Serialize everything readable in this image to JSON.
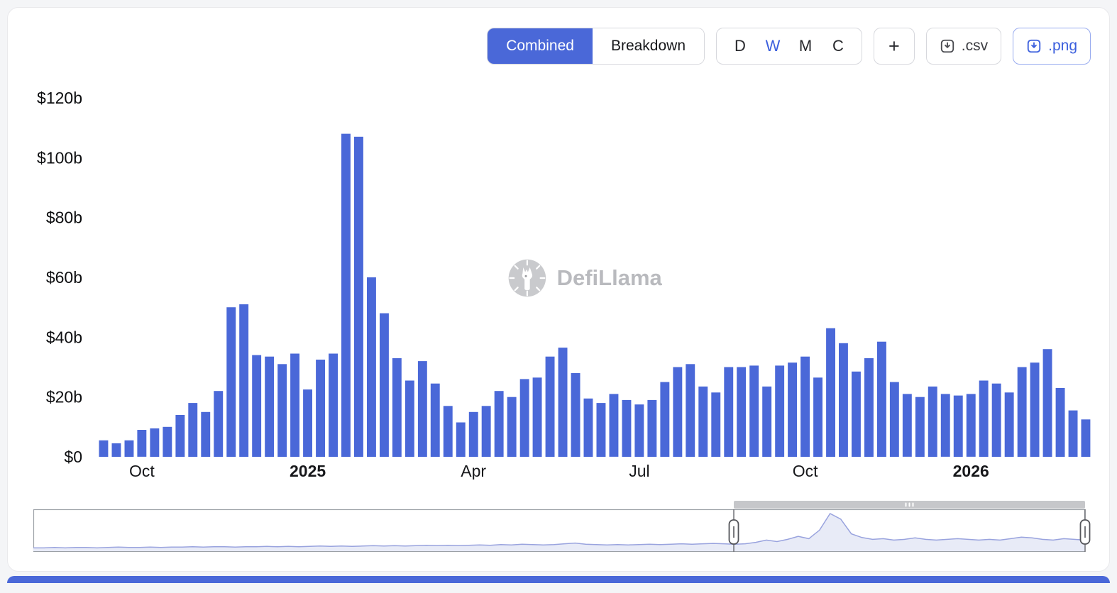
{
  "toolbar": {
    "view_modes": [
      {
        "label": "Combined",
        "active": true
      },
      {
        "label": "Breakdown",
        "active": false
      }
    ],
    "intervals": [
      {
        "label": "D",
        "active": false
      },
      {
        "label": "W",
        "active": true
      },
      {
        "label": "M",
        "active": false
      },
      {
        "label": "C",
        "active": false
      }
    ],
    "add_button": "+",
    "export_csv": ".csv",
    "export_png": ".png"
  },
  "watermark": "DefiLlama",
  "chart_data": {
    "type": "bar",
    "title": "",
    "xlabel": "",
    "ylabel": "",
    "unit": "billions USD (weekly)",
    "bar_color": "#4a68d8",
    "ylim": [
      0,
      120
    ],
    "yticks": [
      {
        "label": "$0",
        "value": 0
      },
      {
        "label": "$20b",
        "value": 20
      },
      {
        "label": "$40b",
        "value": 40
      },
      {
        "label": "$60b",
        "value": 60
      },
      {
        "label": "$80b",
        "value": 80
      },
      {
        "label": "$100b",
        "value": 100
      },
      {
        "label": "$120b",
        "value": 120
      }
    ],
    "xticks": [
      {
        "label": "Oct",
        "index": 3,
        "bold": false
      },
      {
        "label": "2025",
        "index": 16,
        "bold": true
      },
      {
        "label": "Apr",
        "index": 29,
        "bold": false
      },
      {
        "label": "Jul",
        "index": 42,
        "bold": false
      },
      {
        "label": "Oct",
        "index": 55,
        "bold": false
      },
      {
        "label": "2026",
        "index": 68,
        "bold": true
      }
    ],
    "values": [
      5.5,
      4.5,
      5.5,
      9,
      9.5,
      10,
      14,
      18,
      15,
      22,
      50,
      51,
      34,
      33.5,
      31,
      34.5,
      22.5,
      32.5,
      34.5,
      108,
      107,
      60,
      48,
      33,
      25.5,
      32,
      24.5,
      17,
      11.5,
      15,
      17,
      22,
      20,
      26,
      26.5,
      33.5,
      36.5,
      28,
      19.5,
      18,
      21,
      19,
      17.5,
      19,
      25,
      30,
      31,
      23.5,
      21.5,
      30,
      30,
      30.5,
      23.5,
      30.5,
      31.5,
      33.5,
      26.5,
      43,
      38,
      28.5,
      33,
      38.5,
      25,
      21,
      20,
      23.5,
      21,
      20.5,
      21,
      25.5,
      24.5,
      21.5,
      30,
      31.5,
      36,
      23,
      15.5,
      12.5
    ]
  },
  "brush": {
    "selection_start": 0.666,
    "selection_end": 1.0,
    "line_color": "#99a3de",
    "fill_color": "#e8ebf7",
    "values": [
      0.07,
      0.07,
      0.08,
      0.07,
      0.08,
      0.08,
      0.07,
      0.08,
      0.09,
      0.08,
      0.08,
      0.09,
      0.08,
      0.09,
      0.09,
      0.1,
      0.09,
      0.1,
      0.1,
      0.09,
      0.1,
      0.1,
      0.11,
      0.1,
      0.11,
      0.1,
      0.11,
      0.12,
      0.11,
      0.12,
      0.11,
      0.12,
      0.13,
      0.12,
      0.13,
      0.12,
      0.13,
      0.14,
      0.13,
      0.14,
      0.13,
      0.14,
      0.15,
      0.14,
      0.16,
      0.15,
      0.17,
      0.16,
      0.15,
      0.16,
      0.18,
      0.2,
      0.17,
      0.16,
      0.15,
      0.16,
      0.15,
      0.16,
      0.17,
      0.16,
      0.17,
      0.18,
      0.17,
      0.18,
      0.19,
      0.18,
      0.17,
      0.18,
      0.22,
      0.28,
      0.24,
      0.3,
      0.38,
      0.32,
      0.55,
      1.0,
      0.85,
      0.45,
      0.35,
      0.3,
      0.32,
      0.28,
      0.3,
      0.34,
      0.3,
      0.28,
      0.3,
      0.32,
      0.3,
      0.28,
      0.3,
      0.28,
      0.32,
      0.36,
      0.34,
      0.3,
      0.28,
      0.32,
      0.3,
      0.28
    ]
  },
  "colors": {
    "accent": "#4a68d8",
    "background": "#f4f5f7"
  }
}
